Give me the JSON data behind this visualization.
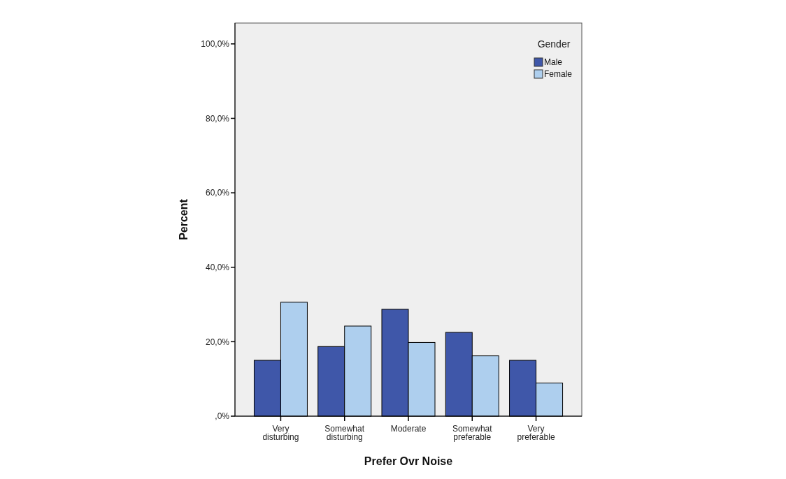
{
  "chart_data": {
    "type": "bar",
    "xlabel": "Prefer Ovr Noise",
    "ylabel": "Percent",
    "legend_title": "Gender",
    "categories": [
      "Very disturbing",
      "Somewhat disturbing",
      "Moderate",
      "Somewhat preferable",
      "Very preferable"
    ],
    "series": [
      {
        "name": "Male",
        "color": "#3f57a9",
        "values": [
          15.0,
          18.7,
          28.7,
          22.5,
          15.0
        ]
      },
      {
        "name": "Female",
        "color": "#aecfee",
        "values": [
          30.6,
          24.2,
          19.8,
          16.2,
          8.9
        ]
      }
    ],
    "ylim": [
      0,
      105.6
    ],
    "yticks": [
      {
        "value": 0,
        "label": ",0%"
      },
      {
        "value": 20,
        "label": "20,0%"
      },
      {
        "value": 40,
        "label": "40,0%"
      },
      {
        "value": 60,
        "label": "60,0%"
      },
      {
        "value": 80,
        "label": "80,0%"
      },
      {
        "value": 100,
        "label": "100,0%"
      }
    ],
    "grid": false,
    "legend": "top right"
  }
}
